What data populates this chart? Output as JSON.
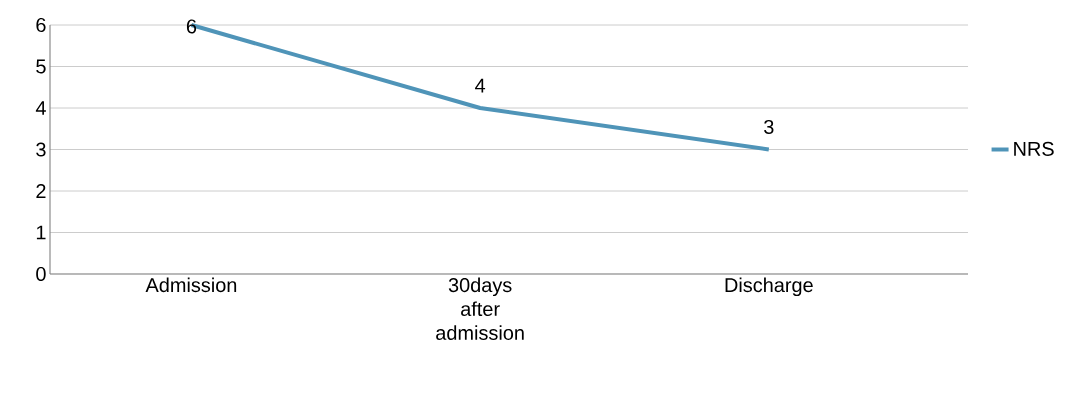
{
  "chart_data": {
    "type": "line",
    "categories": [
      "Admission",
      "30days after admission",
      "Discharge"
    ],
    "series": [
      {
        "name": "NRS",
        "color": "#4f94b8",
        "values": [
          6,
          4,
          3
        ]
      }
    ],
    "ylim": [
      0,
      6
    ],
    "yticks": [
      0,
      1,
      2,
      3,
      4,
      5,
      6
    ],
    "grid": "y",
    "legend": "right",
    "data_labels": true,
    "marker": "none",
    "line_style": "solid"
  }
}
